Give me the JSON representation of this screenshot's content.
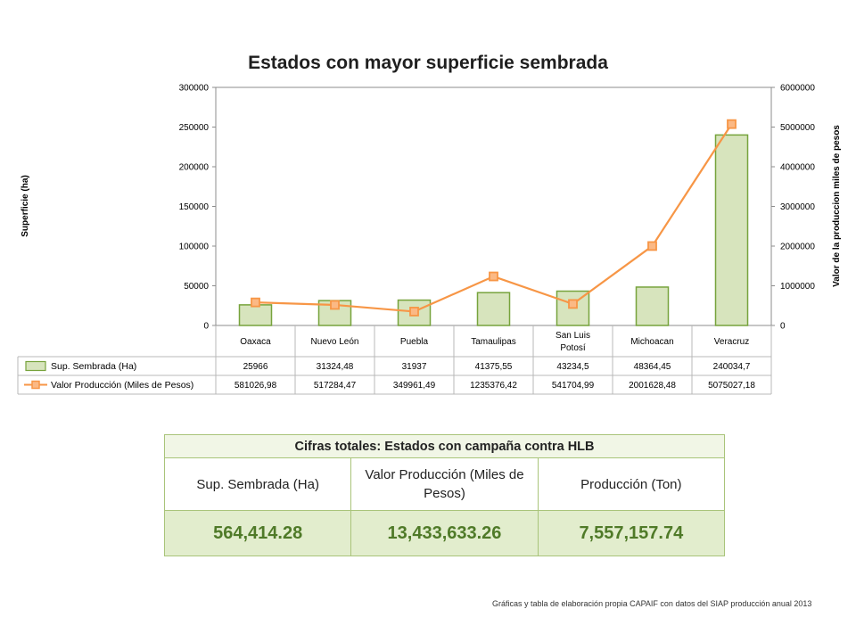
{
  "chart_data": {
    "type": "bar",
    "title": "Estados con mayor superficie sembrada",
    "categories": [
      "Oaxaca",
      "Nuevo León",
      "Puebla",
      "Tamaulipas",
      "San Luis Potosí",
      "Michoacan",
      "Veracruz"
    ],
    "category_labels": [
      [
        "Oaxaca"
      ],
      [
        "Nuevo León"
      ],
      [
        "Puebla"
      ],
      [
        "Tamaulipas"
      ],
      [
        "San Luis",
        "Potosí"
      ],
      [
        "Michoacan"
      ],
      [
        "Veracruz"
      ]
    ],
    "series": [
      {
        "name": "Sup. Sembrada (Ha)",
        "type": "bar",
        "axis": "left",
        "values": [
          25966,
          31324.48,
          31937,
          41375.55,
          43234.5,
          48364.45,
          240034.7
        ],
        "labels": [
          "25966",
          "31324,48",
          "31937",
          "41375,55",
          "43234,5",
          "48364,45",
          "240034,7"
        ],
        "color": "#d7e4bd",
        "stroke": "#77a33c"
      },
      {
        "name": "Valor Producción (Miles de Pesos)",
        "type": "line",
        "axis": "right",
        "values": [
          581026.98,
          517284.47,
          349961.49,
          1235376.42,
          541704.99,
          2001628.48,
          5075027.18
        ],
        "labels": [
          "581026,98",
          "517284,47",
          "349961,49",
          "1235376,42",
          "541704,99",
          "2001628,48",
          "5075027,18"
        ],
        "color": "#f79646",
        "marker_fill": "#fbb985"
      }
    ],
    "ylabel": "Superficie  (ha)",
    "y2label": "Valor de la produccion  miles de pesos",
    "ylim": [
      0,
      300000
    ],
    "y2lim": [
      0,
      6000000
    ],
    "yticks": [
      0,
      50000,
      100000,
      150000,
      200000,
      250000,
      300000
    ],
    "y2ticks": [
      0,
      1000000,
      2000000,
      3000000,
      4000000,
      5000000,
      6000000
    ],
    "grid": false,
    "legend": "data-table"
  },
  "totals": {
    "title": "Cifras totales: Estados con campaña contra HLB",
    "headers": [
      "Sup. Sembrada (Ha)",
      "Valor Producción (Miles de Pesos)",
      "Producción (Ton)"
    ],
    "values": [
      "564,414.28",
      "13,433,633.26",
      "7,557,157.74"
    ]
  },
  "source_note": "Gráficas y tabla de elaboración propia  CAPAIF con datos del SIAP producción anual 2013"
}
